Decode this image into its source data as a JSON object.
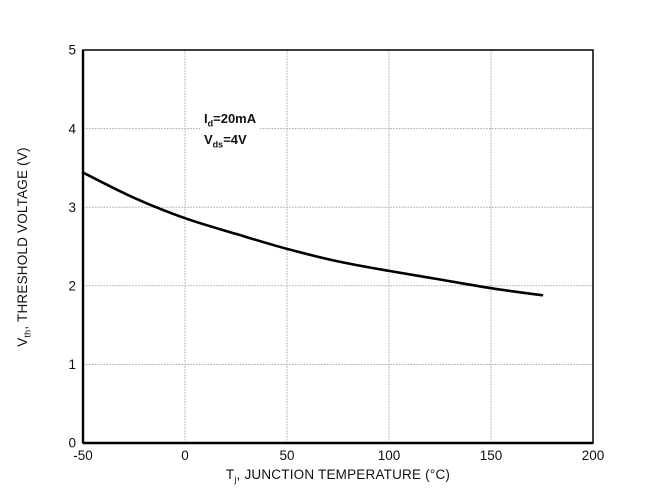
{
  "chart_data": {
    "type": "line",
    "x": [
      -50,
      -25,
      0,
      25,
      50,
      75,
      100,
      125,
      150,
      175
    ],
    "series": [
      {
        "name": "threshold-voltage-vs-junction-temperature",
        "values": [
          3.44,
          3.12,
          2.86,
          2.66,
          2.47,
          2.31,
          2.19,
          2.08,
          1.97,
          1.88
        ]
      }
    ],
    "title": "",
    "xlabel": {
      "prefix": "T",
      "sub": "j",
      "rest": ", JUNCTION TEMPERATURE (°C)"
    },
    "ylabel": {
      "prefix": "V",
      "sub": "th",
      "rest": ", THRESHOLD VOLTAGE (V)"
    },
    "xlim": [
      -50,
      200
    ],
    "ylim": [
      0,
      5
    ],
    "xticks": [
      -50,
      0,
      50,
      100,
      150,
      200
    ],
    "xtick_labels": [
      "-50",
      "0",
      "50",
      "100",
      "150",
      "200"
    ],
    "yticks": [
      0,
      1,
      2,
      3,
      4,
      5
    ],
    "ytick_labels": [
      "0",
      "1",
      "2",
      "3",
      "4",
      "5"
    ],
    "grid": true,
    "legend_position": "none",
    "annotation": {
      "line1": {
        "prefix": "I",
        "sub": "d",
        "rest": "=20mA"
      },
      "line2": {
        "prefix": "V",
        "sub": "ds",
        "rest": "=4V"
      }
    },
    "colors": {
      "line": "#000000",
      "grid": "#a8a8a8",
      "frame": "#000000",
      "background": "#ffffff",
      "text": "#111111"
    }
  }
}
